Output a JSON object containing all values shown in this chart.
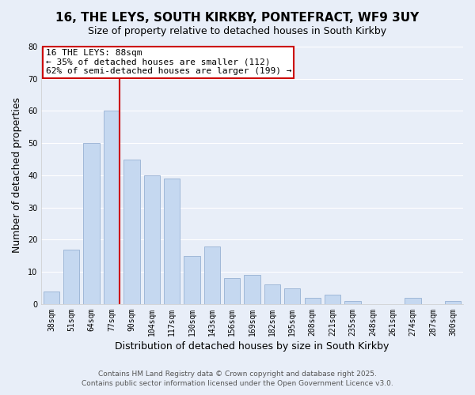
{
  "title": "16, THE LEYS, SOUTH KIRKBY, PONTEFRACT, WF9 3UY",
  "subtitle": "Size of property relative to detached houses in South Kirkby",
  "xlabel": "Distribution of detached houses by size in South Kirkby",
  "ylabel": "Number of detached properties",
  "categories": [
    "38sqm",
    "51sqm",
    "64sqm",
    "77sqm",
    "90sqm",
    "104sqm",
    "117sqm",
    "130sqm",
    "143sqm",
    "156sqm",
    "169sqm",
    "182sqm",
    "195sqm",
    "208sqm",
    "221sqm",
    "235sqm",
    "248sqm",
    "261sqm",
    "274sqm",
    "287sqm",
    "300sqm"
  ],
  "values": [
    4,
    17,
    50,
    60,
    45,
    40,
    39,
    15,
    18,
    8,
    9,
    6,
    5,
    2,
    3,
    1,
    0,
    0,
    2,
    0,
    1
  ],
  "bar_color": "#c5d8f0",
  "bar_edge_color": "#a0b8d8",
  "vline_x_index": 3,
  "vline_color": "#cc0000",
  "annotation_title": "16 THE LEYS: 88sqm",
  "annotation_line1": "← 35% of detached houses are smaller (112)",
  "annotation_line2": "62% of semi-detached houses are larger (199) →",
  "annotation_box_color": "#ffffff",
  "annotation_box_edge_color": "#cc0000",
  "ylim": [
    0,
    80
  ],
  "yticks": [
    0,
    10,
    20,
    30,
    40,
    50,
    60,
    70,
    80
  ],
  "background_color": "#e8eef8",
  "grid_color": "#ffffff",
  "footer1": "Contains HM Land Registry data © Crown copyright and database right 2025.",
  "footer2": "Contains public sector information licensed under the Open Government Licence v3.0.",
  "title_fontsize": 11,
  "subtitle_fontsize": 9,
  "xlabel_fontsize": 9,
  "ylabel_fontsize": 9,
  "tick_fontsize": 7,
  "annotation_fontsize": 8,
  "footer_fontsize": 6.5
}
